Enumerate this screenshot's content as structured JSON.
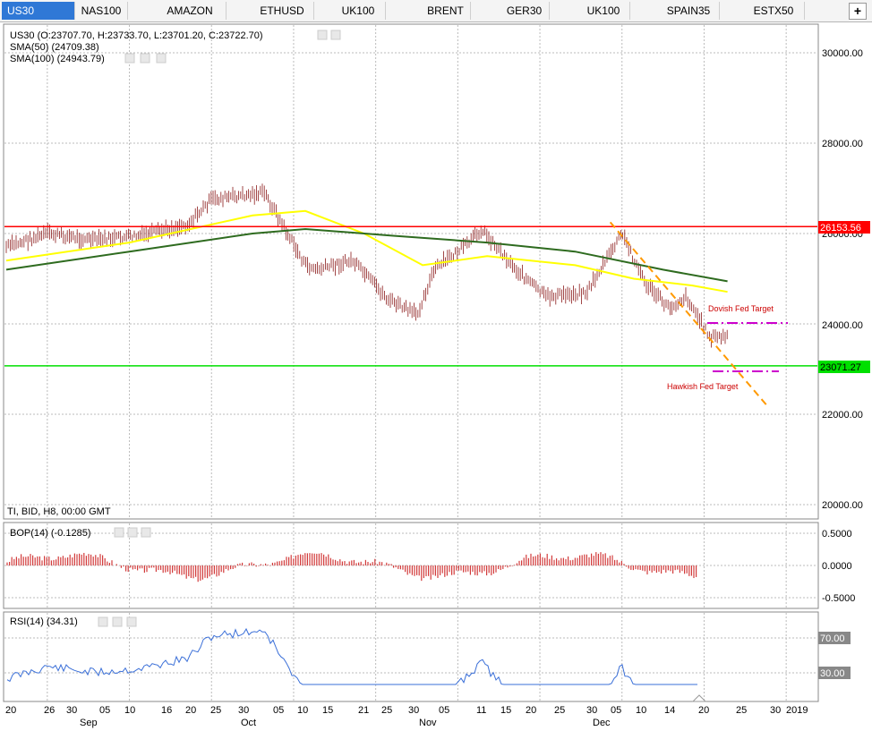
{
  "tabs": [
    {
      "label": "US30",
      "active": true
    },
    {
      "label": "NAS100"
    },
    {
      "label": "AMAZON"
    },
    {
      "label": "ETHUSD"
    },
    {
      "label": "UK100"
    },
    {
      "label": "BRENT"
    },
    {
      "label": "GER30"
    },
    {
      "label": "UK100"
    },
    {
      "label": "SPAIN35"
    },
    {
      "label": "ESTX50"
    }
  ],
  "add_tab_label": "+",
  "main": {
    "ohlc": "US30 (O:23707.70, H:23733.70, L:23701.20, C:23722.70)",
    "sma50": "SMA(50) (24709.38)",
    "sma100": "SMA(100) (24943.79)",
    "source": "TI, BID, H8, 00:00 GMT",
    "price_ticks": [
      "30000.00",
      "28000.00",
      "26000.00",
      "24000.00",
      "22000.00",
      "20000.00"
    ],
    "resistance_label": "26153.56",
    "support_label": "23071.27",
    "dovish_label": "Dovish Fed Target",
    "hawkish_label": "Hawkish Fed Target",
    "colors": {
      "resistance": "#ff0000",
      "support": "#00e000",
      "sma50": "#ffff00",
      "sma100": "#2e6b1f",
      "trend": "#ff9900",
      "target": "#cc00cc",
      "candle": "#8b1a1a"
    }
  },
  "bop": {
    "title": "BOP(14) (-0.1285)",
    "ticks": [
      "0.5000",
      "0.0000",
      "-0.5000"
    ]
  },
  "rsi": {
    "title": "RSI(14) (34.31)",
    "ticks": [
      "70.00",
      "30.00"
    ]
  },
  "x_axis": {
    "days": [
      "20",
      "26",
      "30",
      "05",
      "10",
      "16",
      "20",
      "25",
      "30",
      "05",
      "10",
      "15",
      "21",
      "25",
      "30",
      "05",
      "11",
      "15",
      "20",
      "25",
      "30",
      "05",
      "10",
      "14",
      "20",
      "25",
      "30",
      "2019"
    ],
    "months": [
      "Sep",
      "Oct",
      "Nov",
      "Dec"
    ]
  },
  "chart_data": {
    "type": "line",
    "title": "US30 (O:23707.70, H:23733.70, L:23701.20, C:23722.70)",
    "ylim": [
      19900,
      30900
    ],
    "x_range": [
      "2018-08-20",
      "2019-01-03"
    ],
    "series": [
      {
        "name": "US30",
        "x": [
          "2018-08-20",
          "2018-08-27",
          "2018-09-04",
          "2018-09-12",
          "2018-09-20",
          "2018-09-24",
          "2018-10-03",
          "2018-10-10",
          "2018-10-12",
          "2018-10-18",
          "2018-10-24",
          "2018-10-29",
          "2018-11-01",
          "2018-11-07",
          "2018-11-09",
          "2018-11-15",
          "2018-11-20",
          "2018-11-27",
          "2018-12-03",
          "2018-12-07",
          "2018-12-11",
          "2018-12-14",
          "2018-12-18",
          "2018-12-21"
        ],
        "values": [
          25700,
          26000,
          25850,
          25950,
          26200,
          26750,
          26900,
          25300,
          25200,
          25400,
          24550,
          24200,
          25200,
          25800,
          26100,
          25200,
          24600,
          24700,
          26000,
          24900,
          24350,
          24600,
          23700,
          23722
        ]
      },
      {
        "name": "SMA(50)",
        "x": [
          "2018-08-20",
          "2018-09-10",
          "2018-10-01",
          "2018-10-10",
          "2018-10-20",
          "2018-10-30",
          "2018-11-10",
          "2018-11-25",
          "2018-12-05",
          "2018-12-15",
          "2018-12-21"
        ],
        "values": [
          25400,
          25800,
          26400,
          26500,
          26000,
          25300,
          25500,
          25300,
          25000,
          24850,
          24709
        ]
      },
      {
        "name": "SMA(100)",
        "x": [
          "2018-08-20",
          "2018-09-10",
          "2018-10-01",
          "2018-10-10",
          "2018-10-25",
          "2018-11-10",
          "2018-11-25",
          "2018-12-10",
          "2018-12-21"
        ],
        "values": [
          25200,
          25600,
          26000,
          26100,
          25950,
          25800,
          25600,
          25200,
          24943
        ]
      }
    ],
    "levels": [
      {
        "label": "26153.56",
        "value": 26153.56
      },
      {
        "label": "23071.27",
        "value": 23071.27
      }
    ],
    "targets": [
      {
        "label": "Dovish Fed Target",
        "value": 24020
      },
      {
        "label": "Hawkish Fed Target",
        "value": 22950
      }
    ],
    "trendline": {
      "x": [
        "2018-12-01",
        "2018-12-28"
      ],
      "values": [
        26250,
        22150
      ]
    }
  }
}
